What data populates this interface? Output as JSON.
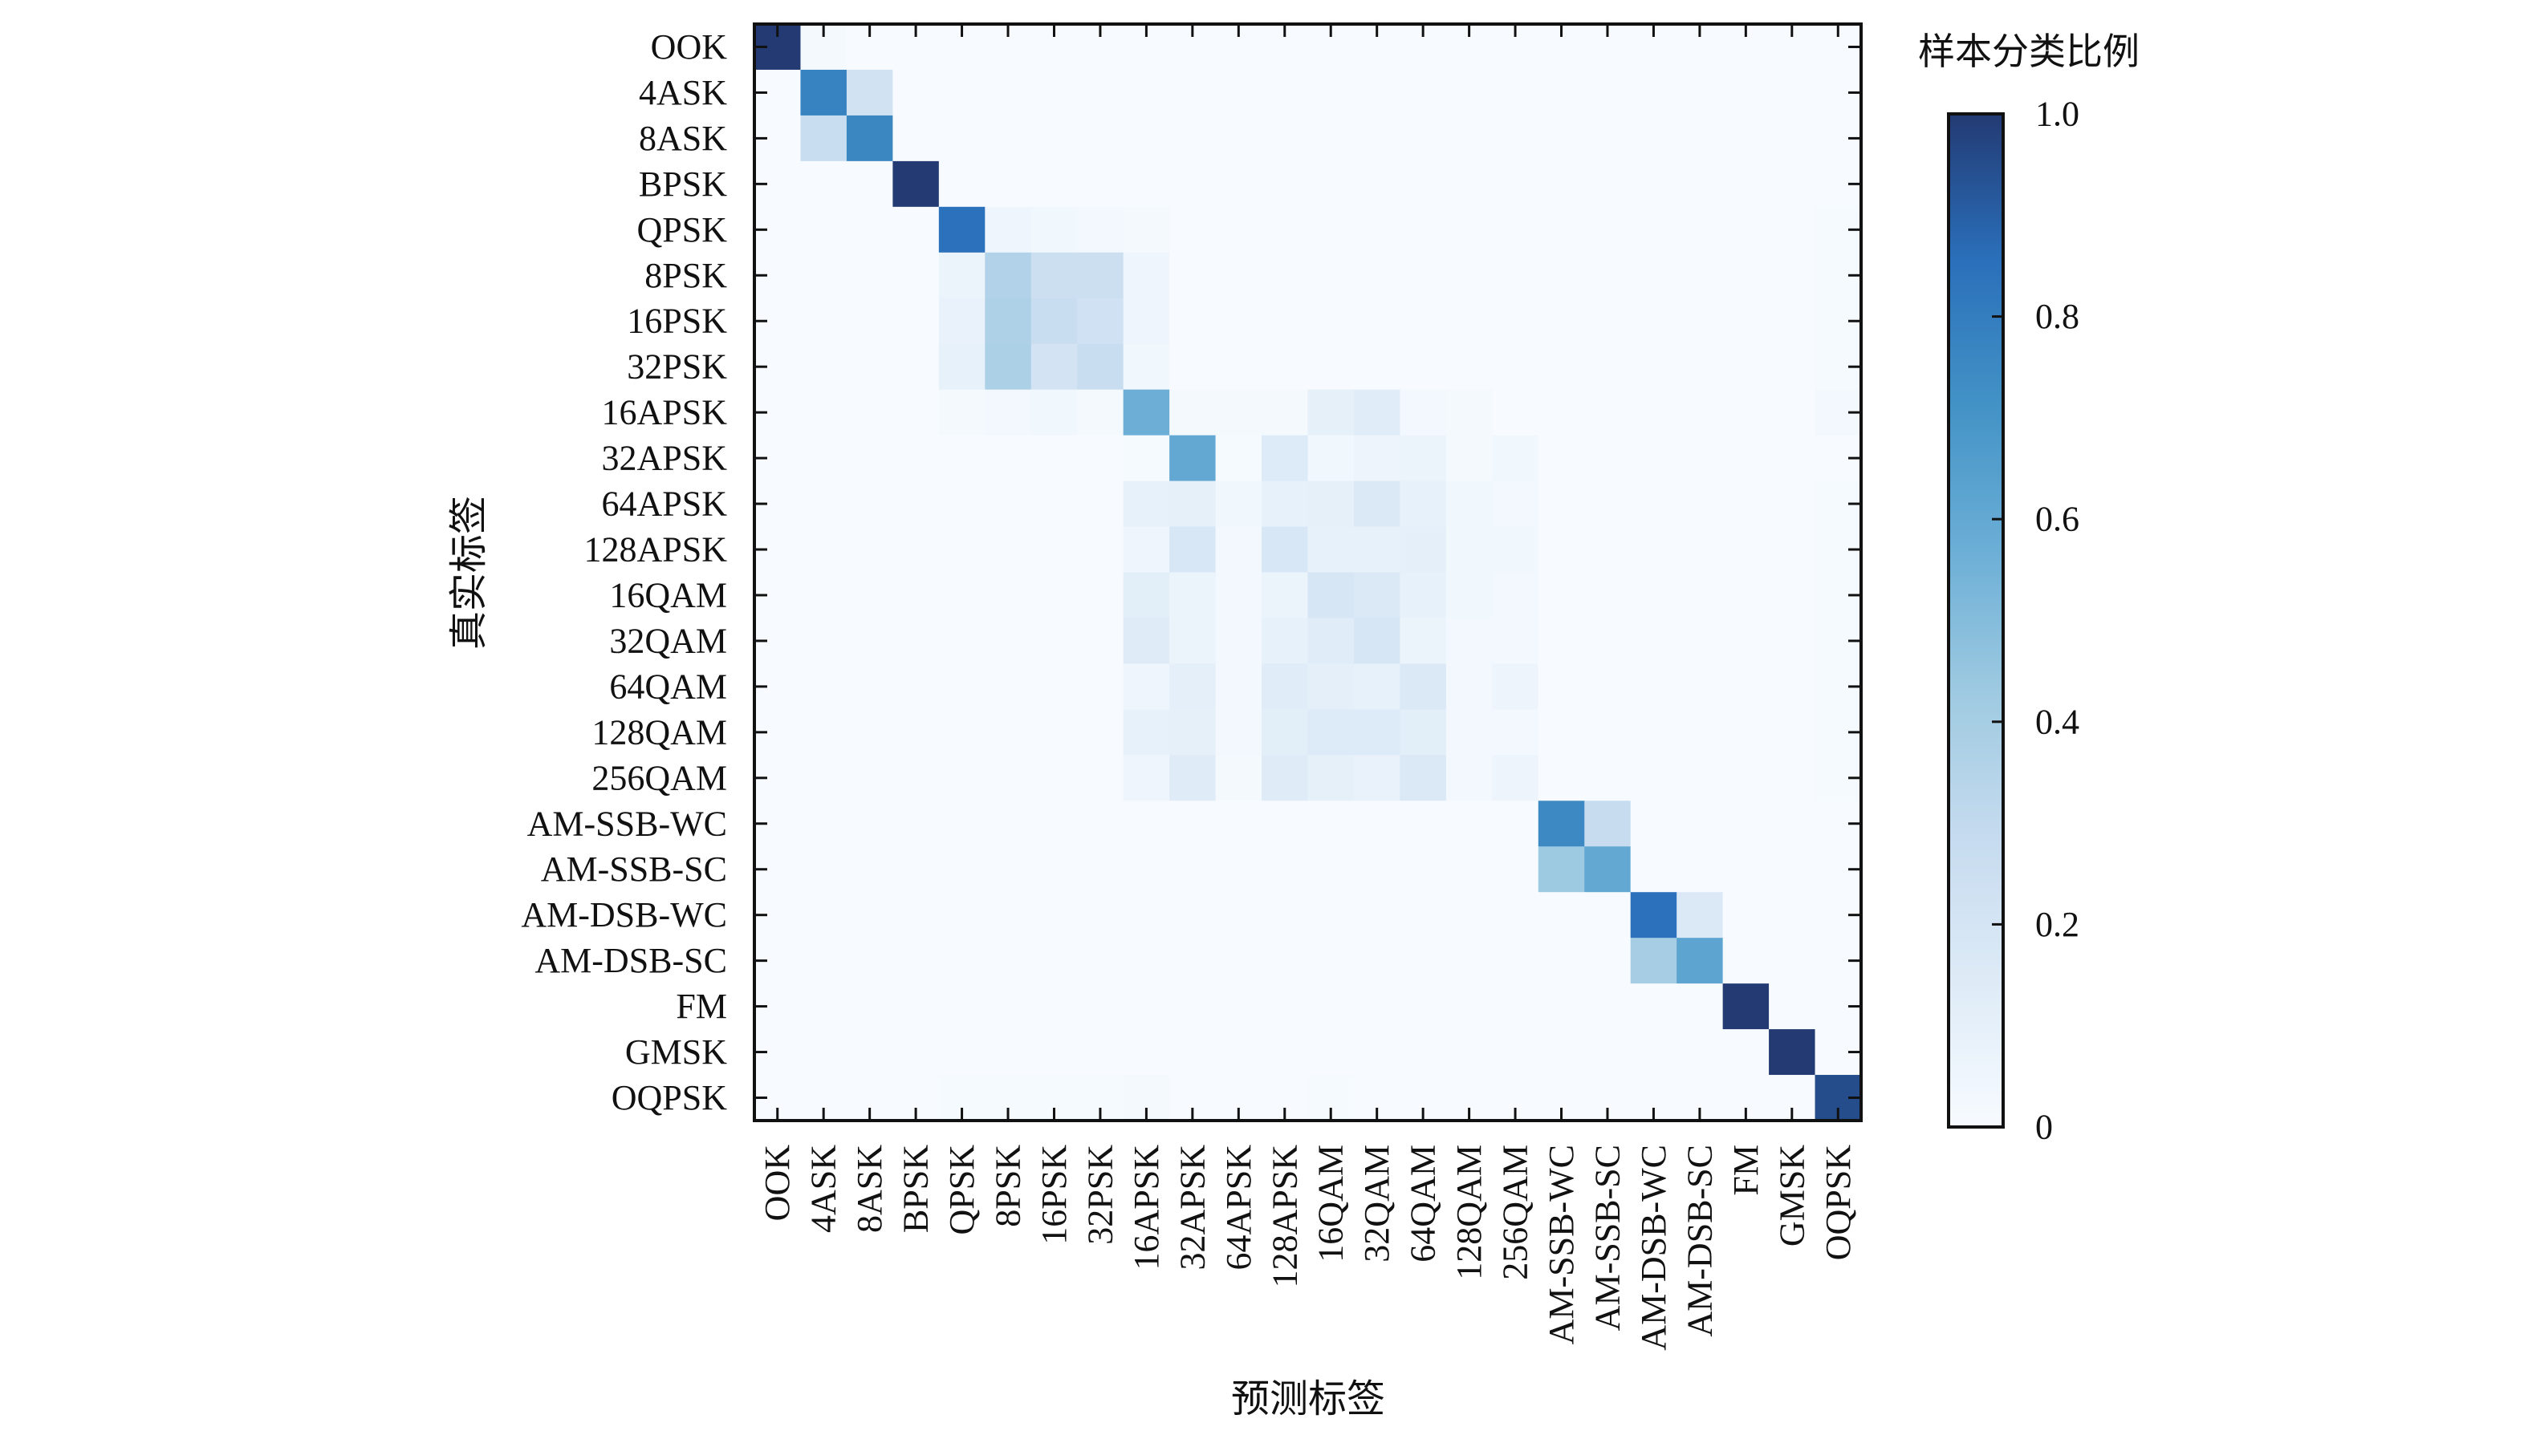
{
  "chart_data": {
    "type": "heatmap",
    "title": "",
    "xlabel": "预测标签",
    "ylabel": "真实标签",
    "colorbar_label": "样本分类比例",
    "colorbar_ticks": [
      "0",
      "0.2",
      "0.4",
      "0.6",
      "0.8",
      "1.0"
    ],
    "colorbar_range": [
      0,
      1
    ],
    "colormap": [
      "#f7fbff",
      "#deebf7",
      "#c6dbef",
      "#9ecae1",
      "#6baed6",
      "#4292c6",
      "#2a6fba",
      "#233a73"
    ],
    "categories": [
      "OOK",
      "4ASK",
      "8ASK",
      "BPSK",
      "QPSK",
      "8PSK",
      "16PSK",
      "32PSK",
      "16APSK",
      "32APSK",
      "64APSK",
      "128APSK",
      "16QAM",
      "32QAM",
      "64QAM",
      "128QAM",
      "256QAM",
      "AM-SSB-WC",
      "AM-SSB-SC",
      "AM-DSB-WC",
      "AM-DSB-SC",
      "FM",
      "GMSK",
      "OQPSK"
    ],
    "matrix": [
      [
        1.0,
        0.02,
        0,
        0,
        0,
        0,
        0,
        0,
        0,
        0,
        0,
        0,
        0,
        0,
        0,
        0,
        0,
        0,
        0,
        0,
        0,
        0,
        0,
        0
      ],
      [
        0,
        0.78,
        0.22,
        0,
        0,
        0,
        0,
        0,
        0,
        0,
        0,
        0,
        0,
        0,
        0,
        0,
        0,
        0,
        0,
        0,
        0,
        0,
        0,
        0
      ],
      [
        0,
        0.27,
        0.76,
        0,
        0,
        0,
        0,
        0,
        0,
        0,
        0,
        0,
        0,
        0,
        0,
        0,
        0,
        0,
        0,
        0,
        0,
        0,
        0,
        0
      ],
      [
        0,
        0,
        0,
        1.0,
        0,
        0,
        0,
        0,
        0,
        0,
        0,
        0,
        0,
        0,
        0,
        0,
        0,
        0,
        0,
        0,
        0,
        0,
        0,
        0
      ],
      [
        0,
        0,
        0,
        0,
        0.85,
        0.05,
        0.04,
        0.03,
        0.02,
        0,
        0,
        0,
        0,
        0,
        0,
        0,
        0,
        0,
        0,
        0,
        0,
        0,
        0,
        0.01
      ],
      [
        0,
        0,
        0,
        0,
        0.07,
        0.36,
        0.25,
        0.25,
        0.05,
        0,
        0,
        0,
        0,
        0,
        0,
        0,
        0,
        0,
        0,
        0,
        0,
        0,
        0,
        0.01
      ],
      [
        0,
        0,
        0,
        0,
        0.08,
        0.37,
        0.27,
        0.23,
        0.05,
        0,
        0,
        0,
        0,
        0,
        0,
        0,
        0,
        0,
        0,
        0,
        0,
        0,
        0,
        0.01
      ],
      [
        0,
        0,
        0,
        0,
        0.09,
        0.38,
        0.21,
        0.27,
        0.04,
        0,
        0,
        0,
        0,
        0,
        0,
        0,
        0,
        0,
        0,
        0,
        0,
        0,
        0,
        0.01
      ],
      [
        0,
        0,
        0,
        0,
        0.02,
        0.03,
        0.04,
        0.02,
        0.57,
        0.02,
        0.02,
        0.02,
        0.1,
        0.13,
        0.03,
        0.02,
        0,
        0,
        0,
        0,
        0,
        0,
        0,
        0.03
      ],
      [
        0,
        0,
        0,
        0,
        0,
        0,
        0,
        0,
        0.01,
        0.6,
        0.01,
        0.15,
        0.04,
        0.06,
        0.07,
        0.02,
        0.04,
        0,
        0,
        0,
        0,
        0,
        0,
        0
      ],
      [
        0,
        0,
        0,
        0,
        0,
        0,
        0,
        0,
        0.09,
        0.1,
        0.04,
        0.09,
        0.1,
        0.16,
        0.09,
        0.04,
        0.03,
        0,
        0,
        0,
        0,
        0,
        0,
        0.01
      ],
      [
        0,
        0,
        0,
        0,
        0,
        0,
        0,
        0,
        0.05,
        0.18,
        0.03,
        0.18,
        0.09,
        0.09,
        0.11,
        0.04,
        0.04,
        0,
        0,
        0,
        0,
        0,
        0,
        0.01
      ],
      [
        0,
        0,
        0,
        0,
        0,
        0,
        0,
        0,
        0.12,
        0.07,
        0.03,
        0.07,
        0.19,
        0.16,
        0.09,
        0.04,
        0.03,
        0,
        0,
        0,
        0,
        0,
        0,
        0.01
      ],
      [
        0,
        0,
        0,
        0,
        0,
        0,
        0,
        0,
        0.14,
        0.07,
        0.03,
        0.09,
        0.13,
        0.19,
        0.07,
        0.03,
        0.03,
        0,
        0,
        0,
        0,
        0,
        0,
        0.01
      ],
      [
        0,
        0,
        0,
        0,
        0,
        0,
        0,
        0,
        0.05,
        0.11,
        0.03,
        0.13,
        0.11,
        0.09,
        0.16,
        0.03,
        0.06,
        0,
        0,
        0,
        0,
        0,
        0,
        0.01
      ],
      [
        0,
        0,
        0,
        0,
        0,
        0,
        0,
        0,
        0.09,
        0.1,
        0.03,
        0.12,
        0.15,
        0.15,
        0.12,
        0.03,
        0.03,
        0,
        0,
        0,
        0,
        0,
        0,
        0.01
      ],
      [
        0,
        0,
        0,
        0,
        0,
        0,
        0,
        0,
        0.05,
        0.14,
        0.02,
        0.14,
        0.1,
        0.08,
        0.16,
        0.03,
        0.06,
        0,
        0,
        0,
        0,
        0,
        0,
        0.01
      ],
      [
        0,
        0,
        0,
        0,
        0,
        0,
        0,
        0,
        0,
        0,
        0,
        0,
        0,
        0,
        0,
        0,
        0,
        0.75,
        0.28,
        0,
        0,
        0,
        0,
        0
      ],
      [
        0,
        0,
        0,
        0,
        0,
        0,
        0,
        0,
        0,
        0,
        0,
        0,
        0,
        0,
        0,
        0,
        0,
        0.43,
        0.6,
        0,
        0,
        0,
        0,
        0
      ],
      [
        0,
        0,
        0,
        0,
        0,
        0,
        0,
        0,
        0,
        0,
        0,
        0,
        0,
        0,
        0,
        0,
        0,
        0,
        0,
        0.85,
        0.16,
        0,
        0,
        0
      ],
      [
        0,
        0,
        0,
        0,
        0,
        0,
        0,
        0,
        0,
        0,
        0,
        0,
        0,
        0,
        0,
        0,
        0,
        0,
        0,
        0.4,
        0.62,
        0,
        0,
        0
      ],
      [
        0,
        0,
        0,
        0,
        0,
        0,
        0,
        0,
        0,
        0,
        0,
        0,
        0,
        0,
        0,
        0,
        0,
        0,
        0,
        0,
        0,
        1.0,
        0,
        0
      ],
      [
        0,
        0,
        0,
        0,
        0,
        0,
        0,
        0,
        0,
        0,
        0,
        0,
        0,
        0,
        0,
        0,
        0,
        0,
        0,
        0,
        0,
        0,
        1.0,
        0
      ],
      [
        0,
        0,
        0,
        0,
        0.01,
        0.01,
        0.01,
        0.01,
        0.02,
        0,
        0,
        0,
        0.01,
        0,
        0,
        0,
        0,
        0,
        0,
        0,
        0,
        0,
        0,
        0.95
      ]
    ]
  }
}
